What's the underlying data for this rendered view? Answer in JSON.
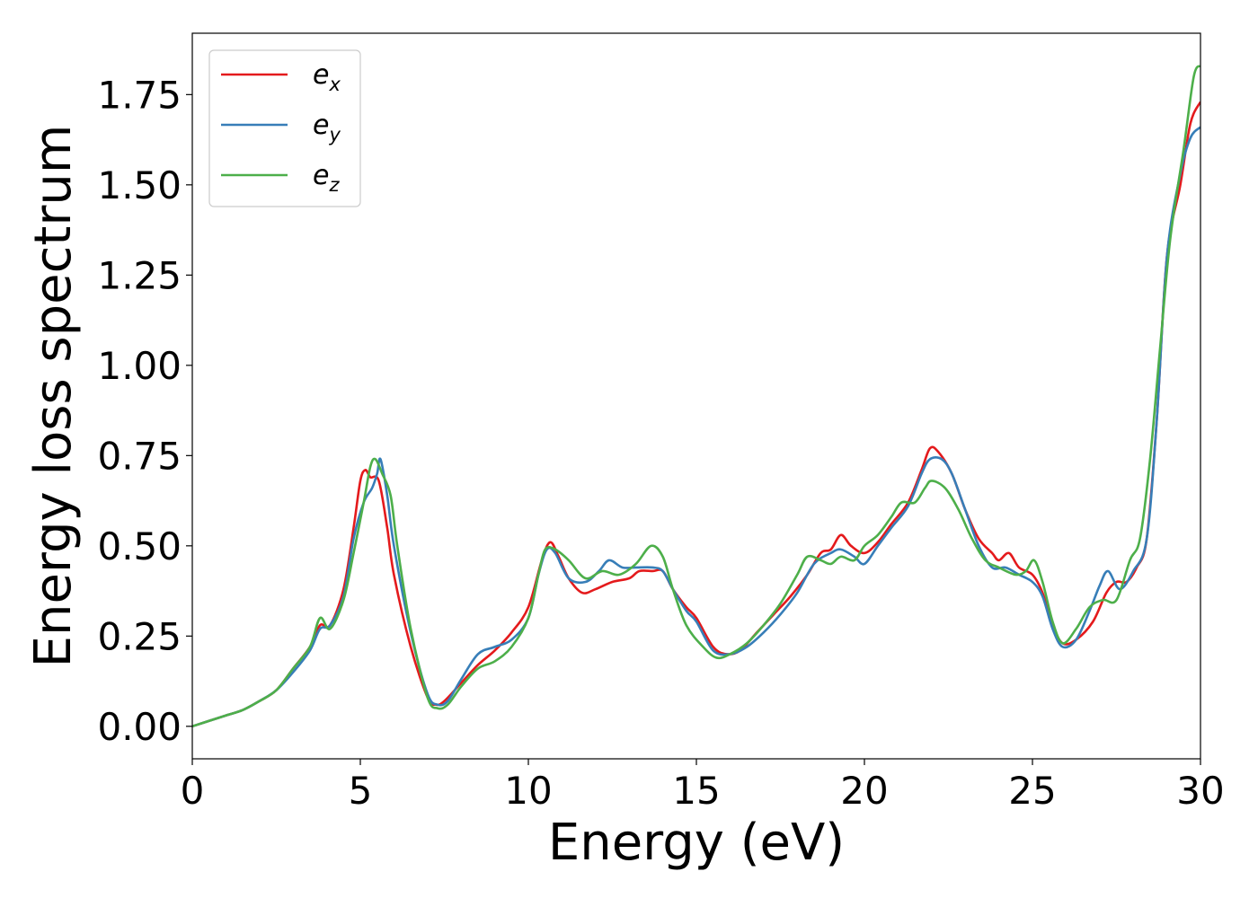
{
  "chart_data": {
    "type": "line",
    "title": "",
    "xlabel": "Energy (eV)",
    "ylabel": "Energy loss spectrum",
    "xlim": [
      0,
      30
    ],
    "ylim": [
      -0.09,
      1.92
    ],
    "xticks": [
      0,
      5,
      10,
      15,
      20,
      25,
      30
    ],
    "xtick_labels": [
      "0",
      "5",
      "10",
      "15",
      "20",
      "25",
      "30"
    ],
    "yticks": [
      0.0,
      0.25,
      0.5,
      0.75,
      1.0,
      1.25,
      1.5,
      1.75
    ],
    "ytick_labels": [
      "0.00",
      "0.25",
      "0.50",
      "0.75",
      "1.00",
      "1.25",
      "1.50",
      "1.75"
    ],
    "grid": false,
    "legend_position": "top-left",
    "series": [
      {
        "name": "e_x",
        "label_base": "e",
        "label_sub": "x",
        "color": "#e41a1c",
        "points": [
          [
            0,
            0
          ],
          [
            0.5,
            0.015
          ],
          [
            1,
            0.03
          ],
          [
            1.5,
            0.045
          ],
          [
            2,
            0.07
          ],
          [
            2.5,
            0.1
          ],
          [
            3,
            0.16
          ],
          [
            3.5,
            0.22
          ],
          [
            3.8,
            0.28
          ],
          [
            4.1,
            0.28
          ],
          [
            4.5,
            0.38
          ],
          [
            4.8,
            0.55
          ],
          [
            5.0,
            0.68
          ],
          [
            5.15,
            0.71
          ],
          [
            5.3,
            0.69
          ],
          [
            5.55,
            0.68
          ],
          [
            5.8,
            0.55
          ],
          [
            6.0,
            0.42
          ],
          [
            6.5,
            0.22
          ],
          [
            7.0,
            0.08
          ],
          [
            7.25,
            0.06
          ],
          [
            7.5,
            0.07
          ],
          [
            8.0,
            0.12
          ],
          [
            8.5,
            0.17
          ],
          [
            9.0,
            0.21
          ],
          [
            9.5,
            0.26
          ],
          [
            10.0,
            0.33
          ],
          [
            10.4,
            0.46
          ],
          [
            10.65,
            0.51
          ],
          [
            10.9,
            0.47
          ],
          [
            11.2,
            0.41
          ],
          [
            11.6,
            0.37
          ],
          [
            12.0,
            0.38
          ],
          [
            12.5,
            0.4
          ],
          [
            13.0,
            0.41
          ],
          [
            13.3,
            0.43
          ],
          [
            13.7,
            0.43
          ],
          [
            14.0,
            0.43
          ],
          [
            14.3,
            0.38
          ],
          [
            14.7,
            0.33
          ],
          [
            15.0,
            0.3
          ],
          [
            15.5,
            0.22
          ],
          [
            15.9,
            0.2
          ],
          [
            16.3,
            0.21
          ],
          [
            16.8,
            0.26
          ],
          [
            17.3,
            0.31
          ],
          [
            17.8,
            0.36
          ],
          [
            18.3,
            0.42
          ],
          [
            18.7,
            0.48
          ],
          [
            19.0,
            0.49
          ],
          [
            19.3,
            0.53
          ],
          [
            19.6,
            0.5
          ],
          [
            20.0,
            0.48
          ],
          [
            20.4,
            0.51
          ],
          [
            20.8,
            0.56
          ],
          [
            21.3,
            0.62
          ],
          [
            21.7,
            0.71
          ],
          [
            21.95,
            0.77
          ],
          [
            22.2,
            0.76
          ],
          [
            22.6,
            0.7
          ],
          [
            23.0,
            0.6
          ],
          [
            23.4,
            0.52
          ],
          [
            23.8,
            0.48
          ],
          [
            24.0,
            0.46
          ],
          [
            24.3,
            0.48
          ],
          [
            24.6,
            0.44
          ],
          [
            25.0,
            0.42
          ],
          [
            25.3,
            0.37
          ],
          [
            25.6,
            0.28
          ],
          [
            25.9,
            0.23
          ],
          [
            26.3,
            0.24
          ],
          [
            26.8,
            0.29
          ],
          [
            27.2,
            0.37
          ],
          [
            27.5,
            0.4
          ],
          [
            27.8,
            0.4
          ],
          [
            28.1,
            0.44
          ],
          [
            28.4,
            0.52
          ],
          [
            28.7,
            0.85
          ],
          [
            29.0,
            1.3
          ],
          [
            29.4,
            1.5
          ],
          [
            29.7,
            1.67
          ],
          [
            30.0,
            1.73
          ]
        ]
      },
      {
        "name": "e_y",
        "label_base": "e",
        "label_sub": "y",
        "color": "#377eb8",
        "points": [
          [
            0,
            0
          ],
          [
            0.5,
            0.015
          ],
          [
            1,
            0.03
          ],
          [
            1.5,
            0.045
          ],
          [
            2,
            0.07
          ],
          [
            2.5,
            0.1
          ],
          [
            3,
            0.15
          ],
          [
            3.5,
            0.21
          ],
          [
            3.8,
            0.27
          ],
          [
            4.1,
            0.28
          ],
          [
            4.5,
            0.36
          ],
          [
            4.8,
            0.52
          ],
          [
            5.1,
            0.62
          ],
          [
            5.35,
            0.66
          ],
          [
            5.5,
            0.7
          ],
          [
            5.6,
            0.74
          ],
          [
            5.8,
            0.64
          ],
          [
            6.0,
            0.5
          ],
          [
            6.5,
            0.26
          ],
          [
            7.0,
            0.09
          ],
          [
            7.3,
            0.06
          ],
          [
            7.6,
            0.07
          ],
          [
            8.0,
            0.13
          ],
          [
            8.5,
            0.2
          ],
          [
            9.0,
            0.22
          ],
          [
            9.5,
            0.24
          ],
          [
            10.0,
            0.3
          ],
          [
            10.3,
            0.42
          ],
          [
            10.55,
            0.49
          ],
          [
            10.8,
            0.48
          ],
          [
            11.2,
            0.41
          ],
          [
            11.7,
            0.4
          ],
          [
            12.1,
            0.43
          ],
          [
            12.4,
            0.46
          ],
          [
            12.8,
            0.44
          ],
          [
            13.2,
            0.44
          ],
          [
            13.7,
            0.44
          ],
          [
            14.0,
            0.43
          ],
          [
            14.3,
            0.38
          ],
          [
            14.7,
            0.32
          ],
          [
            15.0,
            0.29
          ],
          [
            15.5,
            0.21
          ],
          [
            16.0,
            0.2
          ],
          [
            16.5,
            0.22
          ],
          [
            17.0,
            0.26
          ],
          [
            17.5,
            0.31
          ],
          [
            18.0,
            0.37
          ],
          [
            18.5,
            0.45
          ],
          [
            19.0,
            0.48
          ],
          [
            19.3,
            0.49
          ],
          [
            19.7,
            0.47
          ],
          [
            20.0,
            0.45
          ],
          [
            20.4,
            0.5
          ],
          [
            20.8,
            0.55
          ],
          [
            21.3,
            0.61
          ],
          [
            21.7,
            0.7
          ],
          [
            21.95,
            0.74
          ],
          [
            22.3,
            0.74
          ],
          [
            22.6,
            0.7
          ],
          [
            23.0,
            0.6
          ],
          [
            23.4,
            0.5
          ],
          [
            23.8,
            0.44
          ],
          [
            24.2,
            0.44
          ],
          [
            24.6,
            0.42
          ],
          [
            25.0,
            0.4
          ],
          [
            25.3,
            0.36
          ],
          [
            25.6,
            0.27
          ],
          [
            25.9,
            0.22
          ],
          [
            26.3,
            0.24
          ],
          [
            26.7,
            0.32
          ],
          [
            27.0,
            0.39
          ],
          [
            27.25,
            0.43
          ],
          [
            27.6,
            0.38
          ],
          [
            28.0,
            0.43
          ],
          [
            28.4,
            0.52
          ],
          [
            28.7,
            0.85
          ],
          [
            29.0,
            1.3
          ],
          [
            29.4,
            1.53
          ],
          [
            29.7,
            1.63
          ],
          [
            30.0,
            1.66
          ]
        ]
      },
      {
        "name": "e_z",
        "label_base": "e",
        "label_sub": "z",
        "color": "#4daf4a",
        "points": [
          [
            0,
            0
          ],
          [
            0.5,
            0.015
          ],
          [
            1,
            0.03
          ],
          [
            1.5,
            0.045
          ],
          [
            2,
            0.07
          ],
          [
            2.5,
            0.1
          ],
          [
            3,
            0.16
          ],
          [
            3.5,
            0.22
          ],
          [
            3.8,
            0.3
          ],
          [
            4.1,
            0.27
          ],
          [
            4.5,
            0.35
          ],
          [
            4.8,
            0.48
          ],
          [
            5.1,
            0.62
          ],
          [
            5.3,
            0.72
          ],
          [
            5.45,
            0.74
          ],
          [
            5.65,
            0.7
          ],
          [
            5.9,
            0.64
          ],
          [
            6.1,
            0.5
          ],
          [
            6.5,
            0.27
          ],
          [
            7.0,
            0.08
          ],
          [
            7.3,
            0.05
          ],
          [
            7.6,
            0.06
          ],
          [
            8.0,
            0.11
          ],
          [
            8.5,
            0.16
          ],
          [
            9.0,
            0.18
          ],
          [
            9.5,
            0.22
          ],
          [
            10.0,
            0.3
          ],
          [
            10.3,
            0.42
          ],
          [
            10.5,
            0.49
          ],
          [
            10.8,
            0.49
          ],
          [
            11.2,
            0.46
          ],
          [
            11.7,
            0.41
          ],
          [
            12.2,
            0.43
          ],
          [
            12.7,
            0.42
          ],
          [
            13.2,
            0.45
          ],
          [
            13.65,
            0.5
          ],
          [
            14.0,
            0.47
          ],
          [
            14.3,
            0.38
          ],
          [
            14.7,
            0.28
          ],
          [
            15.2,
            0.22
          ],
          [
            15.6,
            0.19
          ],
          [
            16.0,
            0.2
          ],
          [
            16.5,
            0.23
          ],
          [
            17.0,
            0.28
          ],
          [
            17.5,
            0.34
          ],
          [
            18.0,
            0.42
          ],
          [
            18.3,
            0.47
          ],
          [
            18.7,
            0.46
          ],
          [
            19.0,
            0.45
          ],
          [
            19.3,
            0.47
          ],
          [
            19.7,
            0.46
          ],
          [
            20.0,
            0.5
          ],
          [
            20.4,
            0.53
          ],
          [
            20.8,
            0.58
          ],
          [
            21.1,
            0.62
          ],
          [
            21.5,
            0.62
          ],
          [
            21.8,
            0.66
          ],
          [
            22.0,
            0.68
          ],
          [
            22.4,
            0.66
          ],
          [
            22.8,
            0.6
          ],
          [
            23.2,
            0.52
          ],
          [
            23.6,
            0.46
          ],
          [
            24.0,
            0.44
          ],
          [
            24.5,
            0.42
          ],
          [
            24.8,
            0.43
          ],
          [
            25.05,
            0.46
          ],
          [
            25.3,
            0.4
          ],
          [
            25.6,
            0.29
          ],
          [
            25.9,
            0.23
          ],
          [
            26.3,
            0.27
          ],
          [
            26.7,
            0.33
          ],
          [
            27.1,
            0.35
          ],
          [
            27.5,
            0.35
          ],
          [
            27.9,
            0.46
          ],
          [
            28.2,
            0.52
          ],
          [
            28.5,
            0.74
          ],
          [
            28.8,
            1.05
          ],
          [
            29.1,
            1.35
          ],
          [
            29.5,
            1.6
          ],
          [
            29.8,
            1.8
          ],
          [
            30.0,
            1.83
          ]
        ]
      }
    ]
  }
}
